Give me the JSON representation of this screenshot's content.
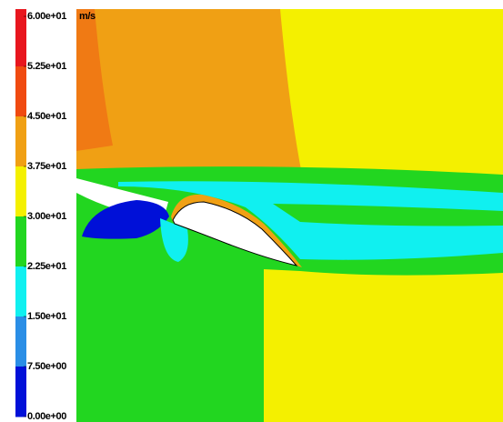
{
  "chart_data": {
    "type": "contour",
    "unit": "m/s",
    "clim": [
      0,
      60
    ],
    "colorbar": {
      "ticks": [
        {
          "value": 60,
          "label": "6.00e+01"
        },
        {
          "value": 52.5,
          "label": "5.25e+01"
        },
        {
          "value": 45,
          "label": "4.50e+01"
        },
        {
          "value": 37.5,
          "label": "3.75e+01"
        },
        {
          "value": 30,
          "label": "3.00e+01"
        },
        {
          "value": 22.5,
          "label": "2.25e+01"
        },
        {
          "value": 15,
          "label": "1.50e+01"
        },
        {
          "value": 7.5,
          "label": "7.50e+00"
        },
        {
          "value": 0,
          "label": "0.00e+00"
        }
      ],
      "colors": [
        "#e8161e",
        "#f04a10",
        "#f0a014",
        "#f4f000",
        "#22d620",
        "#10f0f0",
        "#2a8ee6",
        "#0010d8"
      ]
    }
  }
}
